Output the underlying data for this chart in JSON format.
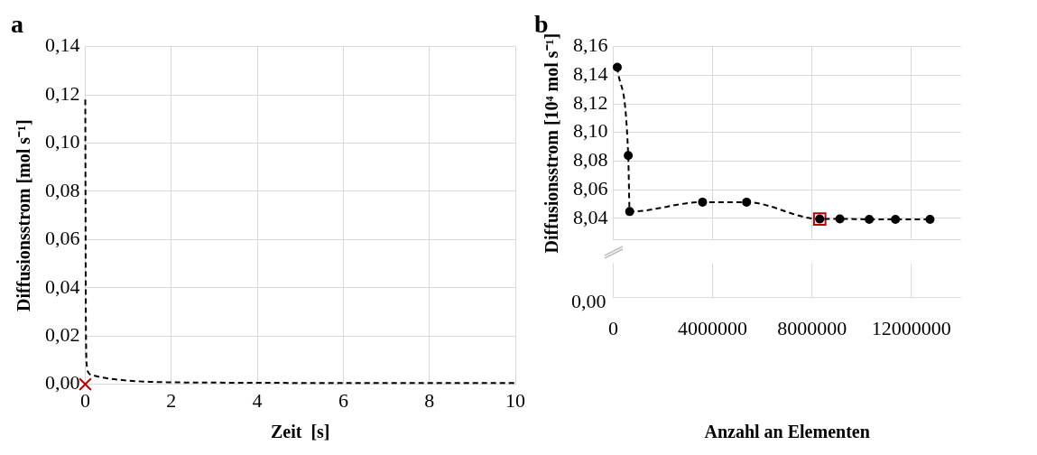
{
  "chart_data": [
    {
      "type": "line",
      "title": "a",
      "xlabel": "Zeit  [s]",
      "ylabel": "Diffusionsstrom [mol s⁻¹]",
      "xlim": [
        0,
        10
      ],
      "xticks": [
        0,
        2,
        4,
        6,
        8,
        10
      ],
      "ylim": [
        0,
        0.14
      ],
      "yticks": [
        {
          "value": 0,
          "label": "0,00"
        },
        {
          "value": 0.02,
          "label": "0,02"
        },
        {
          "value": 0.04,
          "label": "0,04"
        },
        {
          "value": 0.06,
          "label": "0,06"
        },
        {
          "value": 0.08,
          "label": "0,08"
        },
        {
          "value": 0.1,
          "label": "0,10"
        },
        {
          "value": 0.12,
          "label": "0,12"
        },
        {
          "value": 0.14,
          "label": "0,14"
        }
      ],
      "grid": true,
      "series": [
        {
          "color": "#000000",
          "line_style": "dashed",
          "marker": "none",
          "x": [
            0,
            0.005,
            0.01,
            0.02,
            0.04,
            0.07,
            0.1,
            0.2,
            0.5,
            1,
            1.5,
            2,
            4,
            6,
            8,
            10
          ],
          "values": [
            0.118,
            0.08,
            0.04,
            0.015,
            0.007,
            0.005,
            0.0042,
            0.0036,
            0.0025,
            0.0015,
            0.001,
            0.0008,
            0.0006,
            0.0005,
            0.0005,
            0.0005
          ]
        },
        {
          "type": "scatter",
          "color": "#c00000",
          "marker": "cross",
          "x": [
            0
          ],
          "values": [
            0
          ]
        }
      ]
    },
    {
      "type": "line",
      "title": "b",
      "xlabel": "Anzahl an Elementen",
      "ylabel": "Diffusionsstrom [10⁴ mol s⁻¹]",
      "xlim": [
        0,
        14000000
      ],
      "xticks": [
        0,
        4000000,
        8000000,
        12000000
      ],
      "ylim": [
        8.025,
        8.16
      ],
      "yticks": [
        {
          "value": 8.04,
          "label": "8,04"
        },
        {
          "value": 8.06,
          "label": "8,06"
        },
        {
          "value": 8.08,
          "label": "8,08"
        },
        {
          "value": 8.1,
          "label": "8,10"
        },
        {
          "value": 8.12,
          "label": "8,12"
        },
        {
          "value": 8.14,
          "label": "8,14"
        },
        {
          "value": 8.16,
          "label": "8,16"
        }
      ],
      "grid": true,
      "annotations": [
        "0,00"
      ],
      "series": [
        {
          "color": "#000000",
          "line_style": "dashed",
          "marker": "circle",
          "x": [
            162000,
            603000,
            661000,
            3594000,
            5368000,
            8313000,
            9125000,
            10307000,
            11362000,
            12754000
          ],
          "values": [
            8.1456,
            8.0839,
            8.0447,
            8.0513,
            8.0513,
            8.0395,
            8.0396,
            8.0393,
            8.0393,
            8.0393
          ]
        },
        {
          "type": "scatter",
          "color": "#c00000",
          "marker": "square",
          "x": [
            8313000
          ],
          "values": [
            8.0395
          ]
        }
      ]
    }
  ]
}
